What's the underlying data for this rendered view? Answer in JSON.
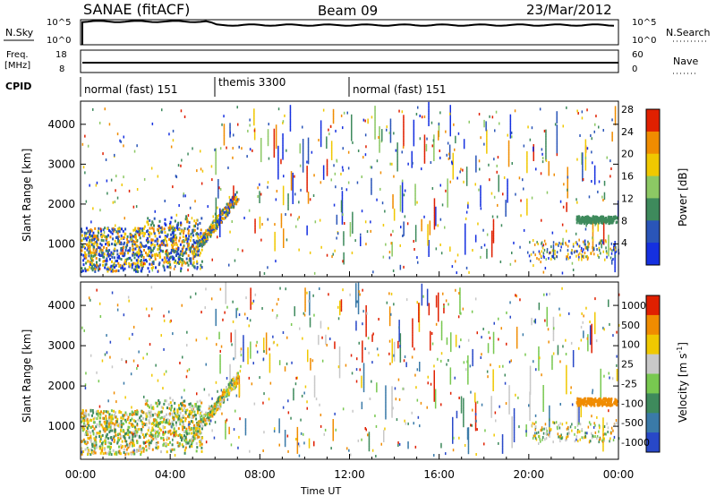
{
  "header": {
    "station": "SANAE (fitACF)",
    "beam": "Beam 09",
    "date": "23/Mar/2012"
  },
  "strips": {
    "nsky_label": "N.Sky",
    "nsky_ticks": [
      "10^5",
      "10^0"
    ],
    "nsearch_label": "N.Search",
    "nsearch_ticks": [
      "10^5",
      "10^0"
    ],
    "freq_label_1": "Freq.",
    "freq_label_2": "[MHz]",
    "freq_ticks": [
      "18",
      "8"
    ],
    "nave_label": "Nave",
    "nave_ticks": [
      "60",
      "0"
    ],
    "cpid_label": "CPID",
    "cpid_segments": [
      {
        "label": "normal (fast) 151",
        "start_h": 0,
        "end_h": 6
      },
      {
        "label": "themis 3300",
        "start_h": 6,
        "end_h": 12
      },
      {
        "label": "normal (fast) 151",
        "start_h": 12,
        "end_h": 24
      }
    ]
  },
  "chart_data": [
    {
      "type": "heatmap",
      "panel": "power",
      "ylabel": "Slant Range [km]",
      "yticks": [
        1000,
        2000,
        3000,
        4000
      ],
      "ylim": [
        180,
        4580
      ],
      "xlim_hours": [
        0,
        24
      ],
      "colorbar_label": "Power [dB]",
      "colorbar_ticks": [
        "4",
        "8",
        "12",
        "16",
        "20",
        "24",
        "28"
      ],
      "colorbar_colors": [
        "#1530e0",
        "#2a55b8",
        "#3e8a5c",
        "#8cc864",
        "#f0c800",
        "#f08c00",
        "#e02000"
      ]
    },
    {
      "type": "heatmap",
      "panel": "velocity",
      "ylabel": "Slant Range [km]",
      "yticks": [
        1000,
        2000,
        3000,
        4000
      ],
      "ylim": [
        180,
        4580
      ],
      "xlim_hours": [
        0,
        24
      ],
      "xticks": [
        "00:00",
        "04:00",
        "08:00",
        "12:00",
        "16:00",
        "20:00",
        "00:00"
      ],
      "xlabel": "Time UT",
      "colorbar_label": "Velocity [m s",
      "colorbar_label_sup": "-1",
      "colorbar_label_end": "]",
      "colorbar_ticks": [
        "1000",
        "500",
        "100",
        "25",
        "-25",
        "-100",
        "-500",
        "-1000"
      ],
      "colorbar_colors": [
        "#2848c8",
        "#3a7aa8",
        "#3e8a5c",
        "#78c850",
        "#c8c8c8",
        "#f0c800",
        "#f08c00",
        "#e02000"
      ]
    }
  ]
}
